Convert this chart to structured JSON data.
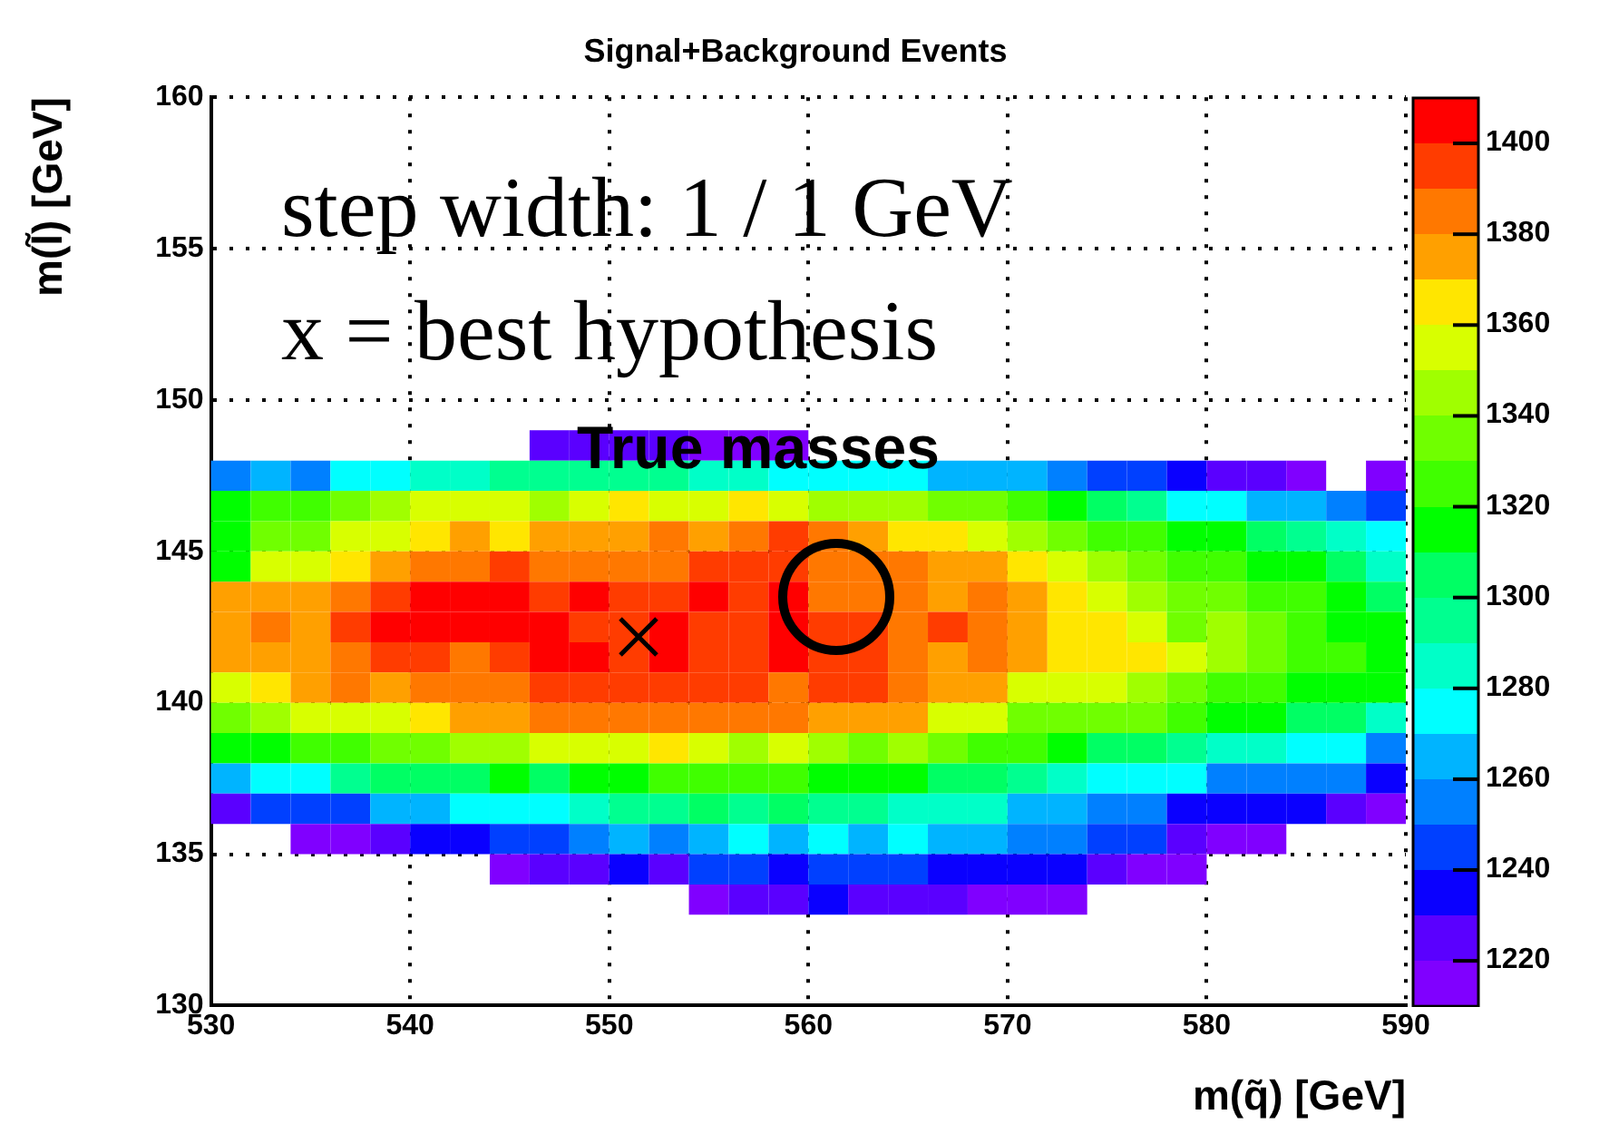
{
  "chart_data": {
    "type": "scatter",
    "title": "Signal+Background Events",
    "xlabel": "m(q̃) [GeV]",
    "ylabel": "m(l̃) [GeV]",
    "annotations": [
      "step width: 1 / 1 GeV",
      "x = best hypothesis",
      "True masses"
    ],
    "xlim": [
      530,
      590
    ],
    "ylim": [
      130,
      160
    ],
    "xticks": [
      530,
      540,
      550,
      560,
      570,
      580,
      590
    ],
    "yticks": [
      130,
      135,
      140,
      145,
      150,
      155,
      160
    ],
    "clim": [
      1210,
      1410
    ],
    "cticks": [
      1220,
      1240,
      1260,
      1280,
      1300,
      1320,
      1340,
      1360,
      1380,
      1400
    ],
    "grid": true,
    "marker": "square",
    "x": [
      547,
      549,
      551,
      553,
      555,
      557,
      559,
      531,
      533,
      535,
      537,
      539,
      541,
      543,
      545,
      547,
      549,
      551,
      553,
      555,
      557,
      559,
      561,
      563,
      565,
      567,
      569,
      571,
      573,
      575,
      577,
      579,
      581,
      583,
      585,
      589,
      531,
      533,
      535,
      537,
      539,
      541,
      543,
      545,
      547,
      549,
      551,
      553,
      555,
      557,
      559,
      561,
      563,
      565,
      567,
      569,
      571,
      573,
      575,
      577,
      579,
      581,
      583,
      585,
      587,
      589,
      531,
      533,
      535,
      537,
      539,
      541,
      543,
      545,
      547,
      549,
      551,
      553,
      555,
      557,
      559,
      561,
      563,
      565,
      567,
      569,
      571,
      573,
      575,
      577,
      579,
      581,
      583,
      585,
      587,
      589,
      531,
      533,
      535,
      537,
      539,
      541,
      543,
      545,
      547,
      549,
      551,
      553,
      555,
      557,
      559,
      561,
      563,
      565,
      567,
      569,
      571,
      573,
      575,
      577,
      579,
      581,
      583,
      585,
      587,
      589,
      531,
      533,
      535,
      537,
      539,
      541,
      543,
      545,
      547,
      549,
      551,
      553,
      555,
      557,
      559,
      561,
      563,
      565,
      567,
      569,
      571,
      573,
      575,
      577,
      579,
      581,
      583,
      585,
      587,
      589,
      531,
      533,
      535,
      537,
      539,
      541,
      543,
      545,
      547,
      549,
      551,
      553,
      555,
      557,
      559,
      561,
      563,
      565,
      567,
      569,
      571,
      573,
      575,
      577,
      579,
      581,
      583,
      585,
      587,
      589,
      531,
      533,
      535,
      537,
      539,
      541,
      543,
      545,
      547,
      549,
      551,
      553,
      555,
      557,
      559,
      561,
      563,
      565,
      567,
      569,
      571,
      573,
      575,
      577,
      579,
      581,
      583,
      585,
      587,
      589,
      531,
      533,
      535,
      537,
      539,
      541,
      543,
      545,
      547,
      549,
      551,
      553,
      555,
      557,
      559,
      561,
      563,
      565,
      567,
      569,
      571,
      573,
      575,
      577,
      579,
      581,
      583,
      585,
      587,
      589,
      531,
      533,
      535,
      537,
      539,
      541,
      543,
      545,
      547,
      549,
      551,
      553,
      555,
      557,
      559,
      561,
      563,
      565,
      567,
      569,
      571,
      573,
      575,
      577,
      579,
      581,
      583,
      585,
      587,
      589,
      531,
      533,
      535,
      537,
      539,
      541,
      543,
      545,
      547,
      549,
      551,
      553,
      555,
      557,
      559,
      561,
      563,
      565,
      567,
      569,
      571,
      573,
      575,
      577,
      579,
      581,
      583,
      585,
      587,
      589,
      531,
      533,
      535,
      537,
      539,
      541,
      543,
      545,
      547,
      549,
      551,
      553,
      555,
      557,
      559,
      561,
      563,
      565,
      567,
      569,
      571,
      573,
      575,
      577,
      579,
      581,
      583,
      585,
      587,
      589,
      531,
      533,
      535,
      537,
      539,
      541,
      543,
      545,
      547,
      549,
      551,
      553,
      555,
      557,
      559,
      561,
      563,
      565,
      567,
      569,
      571,
      573,
      575,
      577,
      579,
      581,
      583,
      585,
      587,
      589,
      535,
      537,
      539,
      541,
      543,
      545,
      547,
      549,
      551,
      553,
      555,
      557,
      559,
      561,
      563,
      565,
      567,
      569,
      571,
      573,
      575,
      577,
      579,
      581,
      583,
      545,
      547,
      549,
      551,
      553,
      555,
      557,
      559,
      561,
      563,
      565,
      567,
      569,
      571,
      573,
      575,
      577,
      579,
      555,
      557,
      559,
      561,
      563,
      565,
      567,
      569,
      571,
      573
    ],
    "values": [
      148.5,
      148.5,
      148.5,
      148.5,
      148.5,
      148.5,
      148.5,
      147.5,
      147.5,
      147.5,
      147.5,
      147.5,
      147.5,
      147.5,
      147.5,
      147.5,
      147.5,
      147.5,
      147.5,
      147.5,
      147.5,
      147.5,
      147.5,
      147.5,
      147.5,
      147.5,
      147.5,
      147.5,
      147.5,
      147.5,
      147.5,
      147.5,
      147.5,
      147.5,
      147.5,
      147.5,
      146.5,
      146.5,
      146.5,
      146.5,
      146.5,
      146.5,
      146.5,
      146.5,
      146.5,
      146.5,
      146.5,
      146.5,
      146.5,
      146.5,
      146.5,
      146.5,
      146.5,
      146.5,
      146.5,
      146.5,
      146.5,
      146.5,
      146.5,
      146.5,
      146.5,
      146.5,
      146.5,
      146.5,
      146.5,
      146.5,
      145.5,
      145.5,
      145.5,
      145.5,
      145.5,
      145.5,
      145.5,
      145.5,
      145.5,
      145.5,
      145.5,
      145.5,
      145.5,
      145.5,
      145.5,
      145.5,
      145.5,
      145.5,
      145.5,
      145.5,
      145.5,
      145.5,
      145.5,
      145.5,
      145.5,
      145.5,
      145.5,
      145.5,
      145.5,
      145.5,
      144.5,
      144.5,
      144.5,
      144.5,
      144.5,
      144.5,
      144.5,
      144.5,
      144.5,
      144.5,
      144.5,
      144.5,
      144.5,
      144.5,
      144.5,
      144.5,
      144.5,
      144.5,
      144.5,
      144.5,
      144.5,
      144.5,
      144.5,
      144.5,
      144.5,
      144.5,
      144.5,
      144.5,
      144.5,
      144.5,
      143.5,
      143.5,
      143.5,
      143.5,
      143.5,
      143.5,
      143.5,
      143.5,
      143.5,
      143.5,
      143.5,
      143.5,
      143.5,
      143.5,
      143.5,
      143.5,
      143.5,
      143.5,
      143.5,
      143.5,
      143.5,
      143.5,
      143.5,
      143.5,
      143.5,
      143.5,
      143.5,
      143.5,
      143.5,
      143.5,
      142.5,
      142.5,
      142.5,
      142.5,
      142.5,
      142.5,
      142.5,
      142.5,
      142.5,
      142.5,
      142.5,
      142.5,
      142.5,
      142.5,
      142.5,
      142.5,
      142.5,
      142.5,
      142.5,
      142.5,
      142.5,
      142.5,
      142.5,
      142.5,
      142.5,
      142.5,
      142.5,
      142.5,
      142.5,
      142.5,
      141.5,
      141.5,
      141.5,
      141.5,
      141.5,
      141.5,
      141.5,
      141.5,
      141.5,
      141.5,
      141.5,
      141.5,
      141.5,
      141.5,
      141.5,
      141.5,
      141.5,
      141.5,
      141.5,
      141.5,
      141.5,
      141.5,
      141.5,
      141.5,
      141.5,
      141.5,
      141.5,
      141.5,
      141.5,
      141.5,
      140.5,
      140.5,
      140.5,
      140.5,
      140.5,
      140.5,
      140.5,
      140.5,
      140.5,
      140.5,
      140.5,
      140.5,
      140.5,
      140.5,
      140.5,
      140.5,
      140.5,
      140.5,
      140.5,
      140.5,
      140.5,
      140.5,
      140.5,
      140.5,
      140.5,
      140.5,
      140.5,
      140.5,
      140.5,
      140.5,
      139.5,
      139.5,
      139.5,
      139.5,
      139.5,
      139.5,
      139.5,
      139.5,
      139.5,
      139.5,
      139.5,
      139.5,
      139.5,
      139.5,
      139.5,
      139.5,
      139.5,
      139.5,
      139.5,
      139.5,
      139.5,
      139.5,
      139.5,
      139.5,
      139.5,
      139.5,
      139.5,
      139.5,
      139.5,
      139.5,
      138.5,
      138.5,
      138.5,
      138.5,
      138.5,
      138.5,
      138.5,
      138.5,
      138.5,
      138.5,
      138.5,
      138.5,
      138.5,
      138.5,
      138.5,
      138.5,
      138.5,
      138.5,
      138.5,
      138.5,
      138.5,
      138.5,
      138.5,
      138.5,
      138.5,
      138.5,
      138.5,
      138.5,
      138.5,
      138.5,
      137.5,
      137.5,
      137.5,
      137.5,
      137.5,
      137.5,
      137.5,
      137.5,
      137.5,
      137.5,
      137.5,
      137.5,
      137.5,
      137.5,
      137.5,
      137.5,
      137.5,
      137.5,
      137.5,
      137.5,
      137.5,
      137.5,
      137.5,
      137.5,
      137.5,
      137.5,
      137.5,
      137.5,
      137.5,
      137.5,
      136.5,
      136.5,
      136.5,
      136.5,
      136.5,
      136.5,
      136.5,
      136.5,
      136.5,
      136.5,
      136.5,
      136.5,
      136.5,
      136.5,
      136.5,
      136.5,
      136.5,
      136.5,
      136.5,
      136.5,
      136.5,
      136.5,
      136.5,
      136.5,
      136.5,
      136.5,
      136.5,
      136.5,
      136.5,
      136.5,
      135.5,
      135.5,
      135.5,
      135.5,
      135.5,
      135.5,
      135.5,
      135.5,
      135.5,
      135.5,
      135.5,
      135.5,
      135.5,
      135.5,
      135.5,
      135.5,
      135.5,
      135.5,
      135.5,
      135.5,
      135.5,
      135.5,
      135.5,
      135.5,
      135.5,
      134.5,
      134.5,
      134.5,
      134.5,
      134.5,
      134.5,
      134.5,
      134.5,
      134.5,
      134.5,
      134.5,
      134.5,
      134.5,
      134.5,
      134.5,
      134.5,
      134.5,
      134.5,
      133.5,
      133.5,
      133.5,
      133.5,
      133.5,
      133.5,
      133.5,
      133.5,
      133.5,
      133.5
    ],
    "cvalues": [
      1225,
      1225,
      1225,
      1225,
      1215,
      1215,
      1215,
      1255,
      1265,
      1255,
      1275,
      1275,
      1285,
      1285,
      1295,
      1295,
      1295,
      1295,
      1295,
      1285,
      1285,
      1275,
      1275,
      1275,
      1275,
      1265,
      1265,
      1265,
      1255,
      1245,
      1245,
      1235,
      1225,
      1225,
      1215,
      1215,
      1315,
      1325,
      1325,
      1335,
      1345,
      1355,
      1355,
      1355,
      1345,
      1355,
      1365,
      1355,
      1355,
      1365,
      1355,
      1345,
      1345,
      1345,
      1335,
      1335,
      1325,
      1315,
      1305,
      1295,
      1275,
      1275,
      1265,
      1265,
      1255,
      1245,
      1315,
      1335,
      1335,
      1355,
      1355,
      1365,
      1375,
      1365,
      1375,
      1375,
      1375,
      1385,
      1375,
      1385,
      1395,
      1385,
      1375,
      1365,
      1365,
      1355,
      1345,
      1335,
      1325,
      1325,
      1315,
      1315,
      1305,
      1295,
      1285,
      1275,
      1315,
      1355,
      1355,
      1365,
      1375,
      1385,
      1385,
      1395,
      1385,
      1385,
      1385,
      1385,
      1395,
      1395,
      1395,
      1385,
      1385,
      1385,
      1375,
      1375,
      1365,
      1355,
      1345,
      1335,
      1325,
      1325,
      1315,
      1315,
      1305,
      1285,
      1375,
      1375,
      1375,
      1385,
      1395,
      1405,
      1405,
      1405,
      1395,
      1405,
      1395,
      1395,
      1405,
      1395,
      1405,
      1385,
      1385,
      1385,
      1375,
      1385,
      1375,
      1365,
      1355,
      1345,
      1335,
      1335,
      1325,
      1325,
      1315,
      1305,
      1375,
      1385,
      1375,
      1395,
      1405,
      1405,
      1405,
      1405,
      1405,
      1395,
      1395,
      1405,
      1395,
      1395,
      1405,
      1395,
      1395,
      1385,
      1395,
      1385,
      1375,
      1365,
      1365,
      1355,
      1335,
      1345,
      1335,
      1325,
      1315,
      1315,
      1375,
      1375,
      1375,
      1385,
      1395,
      1395,
      1385,
      1395,
      1405,
      1405,
      1395,
      1405,
      1395,
      1395,
      1405,
      1395,
      1395,
      1385,
      1375,
      1385,
      1375,
      1365,
      1365,
      1365,
      1355,
      1345,
      1335,
      1325,
      1325,
      1315,
      1355,
      1365,
      1375,
      1385,
      1375,
      1385,
      1385,
      1385,
      1395,
      1395,
      1395,
      1395,
      1395,
      1395,
      1385,
      1395,
      1395,
      1385,
      1375,
      1375,
      1355,
      1355,
      1355,
      1345,
      1335,
      1325,
      1325,
      1315,
      1315,
      1315,
      1335,
      1345,
      1355,
      1355,
      1355,
      1365,
      1375,
      1375,
      1385,
      1385,
      1385,
      1385,
      1385,
      1385,
      1385,
      1375,
      1375,
      1375,
      1355,
      1355,
      1335,
      1335,
      1335,
      1335,
      1325,
      1315,
      1315,
      1305,
      1305,
      1285,
      1315,
      1315,
      1325,
      1325,
      1335,
      1335,
      1345,
      1345,
      1355,
      1355,
      1355,
      1365,
      1355,
      1345,
      1355,
      1345,
      1335,
      1345,
      1335,
      1325,
      1325,
      1315,
      1305,
      1305,
      1295,
      1285,
      1285,
      1275,
      1275,
      1255,
      1265,
      1275,
      1275,
      1295,
      1305,
      1305,
      1305,
      1315,
      1305,
      1315,
      1315,
      1325,
      1325,
      1325,
      1325,
      1315,
      1315,
      1315,
      1305,
      1305,
      1295,
      1285,
      1275,
      1275,
      1275,
      1255,
      1255,
      1255,
      1255,
      1235,
      1225,
      1245,
      1245,
      1245,
      1265,
      1265,
      1275,
      1275,
      1275,
      1285,
      1295,
      1295,
      1305,
      1295,
      1305,
      1295,
      1295,
      1285,
      1285,
      1285,
      1265,
      1265,
      1255,
      1255,
      1235,
      1235,
      1235,
      1235,
      1225,
      1215,
      1215,
      1215,
      1225,
      1235,
      1235,
      1245,
      1245,
      1255,
      1265,
      1255,
      1265,
      1275,
      1265,
      1275,
      1265,
      1275,
      1265,
      1265,
      1255,
      1255,
      1245,
      1245,
      1225,
      1215,
      1215,
      1215,
      1225,
      1225,
      1235,
      1225,
      1245,
      1245,
      1235,
      1245,
      1245,
      1245,
      1235,
      1235,
      1235,
      1235,
      1225,
      1215,
      1215,
      1215,
      1225,
      1225,
      1235,
      1225,
      1225,
      1225,
      1215,
      1215,
      1215
    ]
  }
}
